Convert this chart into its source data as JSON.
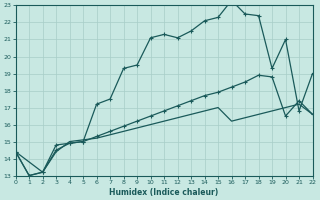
{
  "xlabel": "Humidex (Indice chaleur)",
  "background_color": "#c8e8e2",
  "grid_color": "#a8cec8",
  "line_color": "#1a5a5a",
  "xlim": [
    0,
    22
  ],
  "ylim": [
    13,
    23
  ],
  "xticks": [
    0,
    1,
    2,
    3,
    4,
    5,
    6,
    7,
    8,
    9,
    10,
    11,
    12,
    13,
    14,
    15,
    16,
    17,
    18,
    19,
    20,
    21,
    22
  ],
  "yticks": [
    13,
    14,
    15,
    16,
    17,
    18,
    19,
    20,
    21,
    22,
    23
  ],
  "curve1_x": [
    0,
    1,
    2,
    3,
    4,
    5,
    6,
    7,
    8,
    9,
    10,
    11,
    12,
    13,
    14,
    15,
    16,
    17,
    18,
    19,
    20,
    21,
    22
  ],
  "curve1_y": [
    14.4,
    13.0,
    13.2,
    14.8,
    14.9,
    15.0,
    17.2,
    17.5,
    19.3,
    19.5,
    21.1,
    21.3,
    21.1,
    21.5,
    22.1,
    22.3,
    23.3,
    22.5,
    22.4,
    19.3,
    21.0,
    16.8,
    19.0
  ],
  "curve2_x": [
    0,
    1,
    2,
    3,
    4,
    5,
    6,
    7,
    8,
    9,
    10,
    11,
    12,
    13,
    14,
    15,
    16,
    17,
    18,
    19,
    20,
    21,
    22
  ],
  "curve2_y": [
    14.4,
    13.0,
    13.2,
    14.5,
    14.9,
    15.0,
    15.3,
    15.6,
    15.9,
    16.2,
    16.5,
    16.8,
    17.1,
    17.4,
    17.7,
    17.9,
    18.2,
    18.5,
    18.9,
    18.8,
    16.5,
    17.4,
    16.6
  ],
  "curve3_x": [
    0,
    2,
    3,
    4,
    5,
    6,
    7,
    8,
    9,
    10,
    11,
    12,
    13,
    14,
    15,
    16,
    17,
    18,
    19,
    20,
    21,
    22
  ],
  "curve3_y": [
    14.4,
    13.2,
    14.4,
    15.0,
    15.1,
    15.2,
    15.4,
    15.6,
    15.8,
    16.0,
    16.2,
    16.4,
    16.6,
    16.8,
    17.0,
    16.2,
    16.4,
    16.6,
    16.8,
    17.0,
    17.2,
    16.6
  ]
}
